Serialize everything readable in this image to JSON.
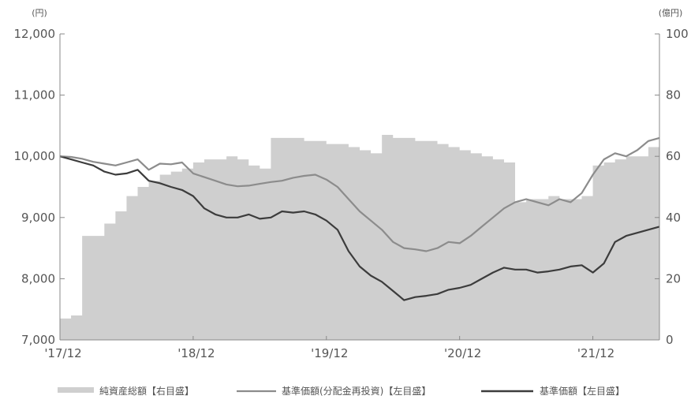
{
  "chart_data": {
    "type": "line",
    "units": {
      "left": "(円)",
      "right": "(億円)"
    },
    "x_ticks": [
      "'17/12",
      "'18/12",
      "'19/12",
      "'20/12",
      "'21/12"
    ],
    "x_range": [
      "2017-12",
      "2022-06"
    ],
    "y_left": {
      "ticks": [
        "7,000",
        "8,000",
        "9,000",
        "10,000",
        "11,000",
        "12,000"
      ],
      "range": [
        7000,
        12000
      ]
    },
    "y_right": {
      "ticks": [
        "0",
        "20",
        "40",
        "60",
        "80",
        "100"
      ],
      "range": [
        0,
        100
      ]
    },
    "grid": false,
    "legend_position": "bottom",
    "colors": {
      "area": "#cfcfcf",
      "line_reinvested": "#8c8c8c",
      "line_nav": "#3c3c3c",
      "axis": "#888888",
      "text": "#555555"
    },
    "series": [
      {
        "name": "純資産総額【右目盛】",
        "type": "area",
        "axis": "right",
        "x": [
          "2017-12",
          "2018-01",
          "2018-02",
          "2018-03",
          "2018-04",
          "2018-05",
          "2018-06",
          "2018-07",
          "2018-08",
          "2018-09",
          "2018-10",
          "2018-11",
          "2018-12",
          "2019-01",
          "2019-02",
          "2019-03",
          "2019-04",
          "2019-05",
          "2019-06",
          "2019-07",
          "2019-08",
          "2019-09",
          "2019-10",
          "2019-11",
          "2019-12",
          "2020-01",
          "2020-02",
          "2020-03",
          "2020-04",
          "2020-05",
          "2020-06",
          "2020-07",
          "2020-08",
          "2020-09",
          "2020-10",
          "2020-11",
          "2020-12",
          "2021-01",
          "2021-02",
          "2021-03",
          "2021-04",
          "2021-05",
          "2021-06",
          "2021-07",
          "2021-08",
          "2021-09",
          "2021-10",
          "2021-11",
          "2021-12",
          "2022-01",
          "2022-02",
          "2022-03",
          "2022-04",
          "2022-05",
          "2022-06"
        ],
        "values": [
          7,
          8,
          34,
          34,
          38,
          42,
          47,
          50,
          52,
          54,
          55,
          56,
          58,
          59,
          59,
          60,
          59,
          57,
          56,
          66,
          66,
          66,
          65,
          65,
          64,
          64,
          63,
          62,
          61,
          67,
          66,
          66,
          65,
          65,
          64,
          63,
          62,
          61,
          60,
          59,
          58,
          45,
          46,
          46,
          47,
          46,
          46,
          47,
          57,
          58,
          59,
          60,
          60,
          63,
          66
        ]
      },
      {
        "name": "基準価額(分配金再投資)【左目盛】",
        "type": "line",
        "axis": "left",
        "x": [
          "2017-12",
          "2018-01",
          "2018-02",
          "2018-03",
          "2018-04",
          "2018-05",
          "2018-06",
          "2018-07",
          "2018-08",
          "2018-09",
          "2018-10",
          "2018-11",
          "2018-12",
          "2019-01",
          "2019-02",
          "2019-03",
          "2019-04",
          "2019-05",
          "2019-06",
          "2019-07",
          "2019-08",
          "2019-09",
          "2019-10",
          "2019-11",
          "2019-12",
          "2020-01",
          "2020-02",
          "2020-03",
          "2020-04",
          "2020-05",
          "2020-06",
          "2020-07",
          "2020-08",
          "2020-09",
          "2020-10",
          "2020-11",
          "2020-12",
          "2021-01",
          "2021-02",
          "2021-03",
          "2021-04",
          "2021-05",
          "2021-06",
          "2021-07",
          "2021-08",
          "2021-09",
          "2021-10",
          "2021-11",
          "2021-12",
          "2022-01",
          "2022-02",
          "2022-03",
          "2022-04",
          "2022-05",
          "2022-06"
        ],
        "values": [
          10000,
          9990,
          9960,
          9910,
          9880,
          9850,
          9900,
          9950,
          9780,
          9880,
          9870,
          9900,
          9720,
          9660,
          9600,
          9540,
          9510,
          9520,
          9550,
          9580,
          9600,
          9650,
          9680,
          9700,
          9620,
          9500,
          9300,
          9100,
          8950,
          8800,
          8600,
          8500,
          8480,
          8450,
          8500,
          8600,
          8580,
          8700,
          8850,
          9000,
          9150,
          9250,
          9300,
          9250,
          9200,
          9300,
          9250,
          9400,
          9700,
          9950,
          10050,
          10000,
          10100,
          10250,
          10300
        ]
      },
      {
        "name": "基準価額【左目盛】",
        "type": "line",
        "axis": "left",
        "x": [
          "2017-12",
          "2018-01",
          "2018-02",
          "2018-03",
          "2018-04",
          "2018-05",
          "2018-06",
          "2018-07",
          "2018-08",
          "2018-09",
          "2018-10",
          "2018-11",
          "2018-12",
          "2019-01",
          "2019-02",
          "2019-03",
          "2019-04",
          "2019-05",
          "2019-06",
          "2019-07",
          "2019-08",
          "2019-09",
          "2019-10",
          "2019-11",
          "2019-12",
          "2020-01",
          "2020-02",
          "2020-03",
          "2020-04",
          "2020-05",
          "2020-06",
          "2020-07",
          "2020-08",
          "2020-09",
          "2020-10",
          "2020-11",
          "2020-12",
          "2021-01",
          "2021-02",
          "2021-03",
          "2021-04",
          "2021-05",
          "2021-06",
          "2021-07",
          "2021-08",
          "2021-09",
          "2021-10",
          "2021-11",
          "2021-12",
          "2022-01",
          "2022-02",
          "2022-03",
          "2022-04",
          "2022-05",
          "2022-06"
        ],
        "values": [
          10000,
          9950,
          9900,
          9850,
          9750,
          9700,
          9720,
          9780,
          9600,
          9560,
          9500,
          9450,
          9350,
          9150,
          9050,
          9000,
          9000,
          9050,
          8980,
          9000,
          9100,
          9080,
          9100,
          9050,
          8950,
          8800,
          8450,
          8200,
          8050,
          7950,
          7800,
          7650,
          7700,
          7720,
          7750,
          7820,
          7850,
          7900,
          8000,
          8100,
          8180,
          8150,
          8150,
          8100,
          8120,
          8150,
          8200,
          8220,
          8100,
          8250,
          8600,
          8700,
          8750,
          8800,
          8850
        ]
      }
    ]
  }
}
